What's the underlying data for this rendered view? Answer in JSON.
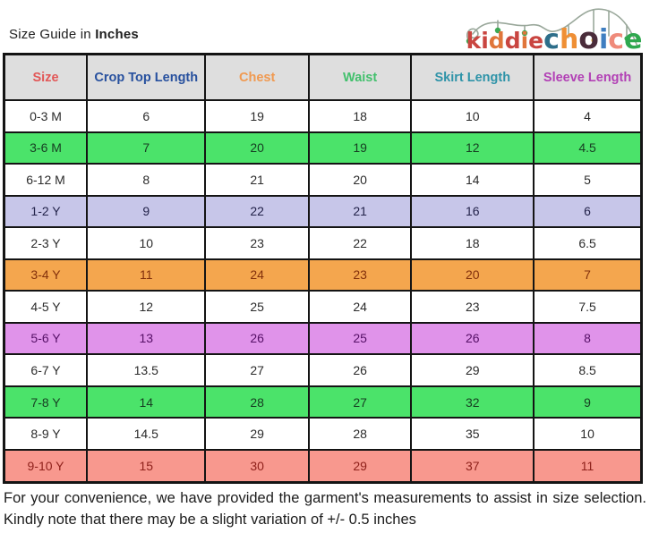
{
  "title": {
    "prefix": "Size Guide in ",
    "bold": "Inches"
  },
  "logo": {
    "name": "kiddiechoice",
    "letters": [
      {
        "ch": "k",
        "color": "#c94540",
        "size": 25
      },
      {
        "ch": "i",
        "color": "#c94540",
        "size": 25
      },
      {
        "ch": "d",
        "color": "#e0763b",
        "size": 25
      },
      {
        "ch": "d",
        "color": "#c94540",
        "size": 25
      },
      {
        "ch": "i",
        "color": "#e0763b",
        "size": 25
      },
      {
        "ch": "e",
        "color": "#c94540",
        "size": 25
      },
      {
        "ch": "c",
        "color": "#2d6e8a",
        "size": 30
      },
      {
        "ch": "h",
        "color": "#ef8f35",
        "size": 30
      },
      {
        "ch": "o",
        "color": "#4a2c3a",
        "size": 33
      },
      {
        "ch": "i",
        "color": "#3f7ec1",
        "size": 30
      },
      {
        "ch": "c",
        "color": "#ef8a7a",
        "size": 30
      },
      {
        "ch": "e",
        "color": "#2fa84f",
        "size": 30
      }
    ],
    "swirl_color": "#9aa89b",
    "bauble_color": "#3da853"
  },
  "table": {
    "headers": [
      {
        "label": "Size",
        "color": "#e25757"
      },
      {
        "label": "Crop Top Length",
        "color": "#27509e"
      },
      {
        "label": "Chest",
        "color": "#f09950"
      },
      {
        "label": "Waist",
        "color": "#43c06d"
      },
      {
        "label": "Skirt Length",
        "color": "#2e93a8"
      },
      {
        "label": "Sleeve Length",
        "color": "#b240b5"
      }
    ],
    "header_bg": "#dedede",
    "rows": [
      {
        "size": "0-3 M",
        "values": [
          "6",
          "19",
          "18",
          "10",
          "4"
        ],
        "bg": "#ffffff",
        "fg": "#2b2b2b"
      },
      {
        "size": "3-6 M",
        "values": [
          "7",
          "20",
          "19",
          "12",
          "4.5"
        ],
        "bg": "#4be36a",
        "fg": "#173d22"
      },
      {
        "size": "6-12 M",
        "values": [
          "8",
          "21",
          "20",
          "14",
          "5"
        ],
        "bg": "#ffffff",
        "fg": "#2b2b2b"
      },
      {
        "size": "1-2 Y",
        "values": [
          "9",
          "22",
          "21",
          "16",
          "6"
        ],
        "bg": "#c7c6e9",
        "fg": "#23234a"
      },
      {
        "size": "2-3 Y",
        "values": [
          "10",
          "23",
          "22",
          "18",
          "6.5"
        ],
        "bg": "#ffffff",
        "fg": "#2b2b2b"
      },
      {
        "size": "3-4 Y",
        "values": [
          "11",
          "24",
          "23",
          "20",
          "7"
        ],
        "bg": "#f4a64e",
        "fg": "#82300c"
      },
      {
        "size": "4-5 Y",
        "values": [
          "12",
          "25",
          "24",
          "23",
          "7.5"
        ],
        "bg": "#ffffff",
        "fg": "#2b2b2b"
      },
      {
        "size": "5-6 Y",
        "values": [
          "13",
          "26",
          "25",
          "26",
          "8"
        ],
        "bg": "#e093ea",
        "fg": "#551066"
      },
      {
        "size": "6-7 Y",
        "values": [
          "13.5",
          "27",
          "26",
          "29",
          "8.5"
        ],
        "bg": "#ffffff",
        "fg": "#2b2b2b"
      },
      {
        "size": "7-8 Y",
        "values": [
          "14",
          "28",
          "27",
          "32",
          "9"
        ],
        "bg": "#4be36a",
        "fg": "#173d22"
      },
      {
        "size": "8-9 Y",
        "values": [
          "14.5",
          "29",
          "28",
          "35",
          "10"
        ],
        "bg": "#ffffff",
        "fg": "#2b2b2b"
      },
      {
        "size": "9-10 Y",
        "values": [
          "15",
          "30",
          "29",
          "37",
          "11"
        ],
        "bg": "#f8988e",
        "fg": "#8f211b"
      }
    ]
  },
  "footer": {
    "text": "For your convenience, we have provided the garment's measurements to assist in size selection. Kindly note that there may be a slight variation of +/- 0.5 inches"
  }
}
